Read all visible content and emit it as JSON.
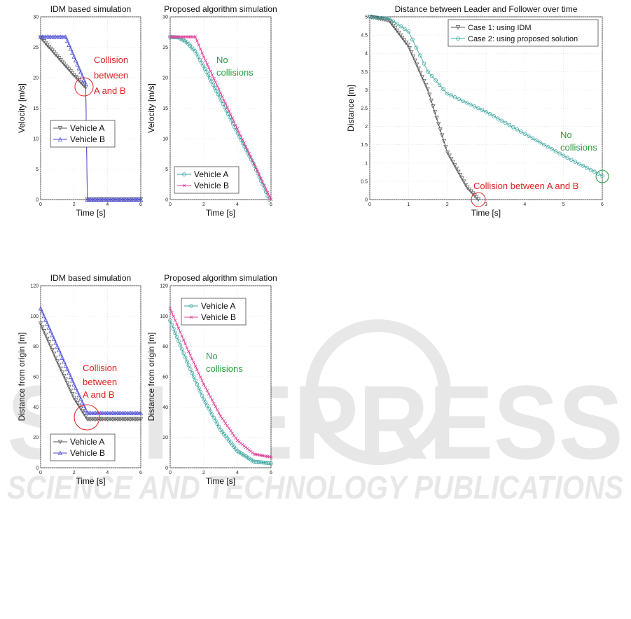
{
  "watermark": {
    "text": "SCITEPRESS",
    "subtext": "SCIENCE AND TECHNOLOGY PUBLICATIONS"
  },
  "colors": {
    "vehicle_a": "#555555",
    "vehicle_b_idm": "#4a4ad6",
    "vehicle_a_prop": "#3aa6a0",
    "vehicle_b_prop": "#e0409a",
    "case2": "#3aa6a0",
    "annot_red": "#e02020",
    "annot_green": "#2aa040"
  },
  "chart_data": [
    {
      "id": "vel_idm",
      "type": "line",
      "title": "IDM based simulation",
      "xlabel": "Time [s]",
      "ylabel": "Velocity [m/s]",
      "xlim": [
        0,
        6
      ],
      "ylim": [
        0,
        30
      ],
      "xticks": [
        0,
        2,
        4,
        6
      ],
      "yticks": [
        0,
        5,
        10,
        15,
        20,
        25,
        30
      ],
      "grid": true,
      "legend": "center-left",
      "series": [
        {
          "name": "Vehicle A",
          "marker": "tri-down",
          "color": "#555555",
          "points": [
            [
              0,
              26.6
            ],
            [
              1,
              23.5
            ],
            [
              2,
              20.4
            ],
            [
              2.7,
              18.4
            ],
            [
              2.8,
              0
            ],
            [
              6,
              0
            ]
          ]
        },
        {
          "name": "Vehicle B",
          "marker": "tri-up",
          "color": "#4a4ad6",
          "points": [
            [
              0,
              26.7
            ],
            [
              1.5,
              26.7
            ],
            [
              2.7,
              19.0
            ],
            [
              2.8,
              0
            ],
            [
              6,
              0
            ]
          ]
        }
      ],
      "annotations": [
        {
          "text": "Collision between A and B",
          "lines": [
            "Collision",
            "between",
            "A and B"
          ],
          "color": "red",
          "at": [
            2.7,
            18.6
          ]
        }
      ]
    },
    {
      "id": "vel_prop",
      "type": "line",
      "title": "Proposed algorithm simulation",
      "xlabel": "Time [s]",
      "ylabel": "Velocity [m/s]",
      "xlim": [
        0,
        6
      ],
      "ylim": [
        0,
        30
      ],
      "xticks": [
        0,
        2,
        4,
        6
      ],
      "yticks": [
        0,
        5,
        10,
        15,
        20,
        25,
        30
      ],
      "grid": true,
      "legend": "bottom-left",
      "series": [
        {
          "name": "Vehicle A",
          "marker": "circle",
          "color": "#3aa6a0",
          "points": [
            [
              0,
              26.7
            ],
            [
              0.5,
              26.6
            ],
            [
              1,
              25.8
            ],
            [
              1.5,
              24.3
            ],
            [
              2,
              21.8
            ],
            [
              3,
              16.5
            ],
            [
              4,
              11.0
            ],
            [
              5,
              5.6
            ],
            [
              5.9,
              0
            ]
          ]
        },
        {
          "name": "Vehicle B",
          "marker": "x",
          "color": "#e0409a",
          "points": [
            [
              0,
              26.7
            ],
            [
              1.5,
              26.7
            ],
            [
              2,
              23.4
            ],
            [
              3,
              17.5
            ],
            [
              4,
              11.6
            ],
            [
              5,
              5.8
            ],
            [
              6,
              0
            ]
          ]
        }
      ],
      "annotations": [
        {
          "text": "No collisions",
          "lines": [
            "No",
            "collisions"
          ],
          "color": "green",
          "at": [
            2.7,
            22
          ]
        }
      ]
    },
    {
      "id": "dist_lf",
      "type": "line",
      "title": "Distance between Leader and Follower over time",
      "xlabel": "Time [s]",
      "ylabel": "Distance [m]",
      "xlim": [
        0,
        6
      ],
      "ylim": [
        0,
        5
      ],
      "xticks": [
        0,
        1,
        2,
        3,
        4,
        5,
        6
      ],
      "yticks": [
        0,
        0.5,
        1,
        1.5,
        2,
        2.5,
        3,
        3.5,
        4,
        4.5,
        5
      ],
      "grid": true,
      "legend": "top-right",
      "series": [
        {
          "name": "Case 1: using IDM",
          "marker": "tri-down",
          "color": "#555555",
          "points": [
            [
              0,
              5
            ],
            [
              0.5,
              4.9
            ],
            [
              1,
              4.2
            ],
            [
              1.5,
              3.0
            ],
            [
              2,
              1.3
            ],
            [
              2.5,
              0.35
            ],
            [
              2.8,
              0
            ]
          ]
        },
        {
          "name": "Case 2: using proposed solution",
          "marker": "circle",
          "color": "#3aa6a0",
          "points": [
            [
              0,
              5
            ],
            [
              0.5,
              4.95
            ],
            [
              1,
              4.6
            ],
            [
              1.5,
              3.5
            ],
            [
              2,
              2.9
            ],
            [
              3,
              2.4
            ],
            [
              4,
              1.8
            ],
            [
              5,
              1.2
            ],
            [
              6,
              0.65
            ]
          ]
        }
      ],
      "annotations": [
        {
          "text": "Collision between A and B",
          "lines": [
            "Collision between A and B"
          ],
          "color": "red",
          "at": [
            2.8,
            0
          ]
        },
        {
          "text": "No collisions",
          "lines": [
            "No",
            "collisions"
          ],
          "color": "green",
          "at": [
            6.0,
            0.65
          ]
        }
      ]
    },
    {
      "id": "pos_idm",
      "type": "line",
      "title": "IDM based simulation",
      "xlabel": "Time [s]",
      "ylabel": "Distance from origin [m]",
      "xlim": [
        0,
        6
      ],
      "ylim": [
        0,
        120
      ],
      "xticks": [
        0,
        2,
        4,
        6
      ],
      "yticks": [
        0,
        20,
        40,
        60,
        80,
        100,
        120
      ],
      "grid": true,
      "legend": "bottom-left",
      "series": [
        {
          "name": "Vehicle A",
          "marker": "tri-down",
          "color": "#555555",
          "points": [
            [
              0,
              95
            ],
            [
              1,
              70
            ],
            [
              2,
              46
            ],
            [
              2.8,
              32
            ],
            [
              6,
              32
            ]
          ]
        },
        {
          "name": "Vehicle B",
          "marker": "tri-up",
          "color": "#4a4ad6",
          "points": [
            [
              0,
              105
            ],
            [
              1,
              80
            ],
            [
              2,
              55
            ],
            [
              2.8,
              36
            ],
            [
              6,
              36
            ]
          ]
        }
      ],
      "annotations": [
        {
          "text": "Collision between A and B",
          "lines": [
            "Collision",
            "between",
            "A and B"
          ],
          "color": "red",
          "at": [
            2.8,
            33
          ]
        }
      ]
    },
    {
      "id": "pos_prop",
      "type": "line",
      "title": "Proposed algorithm simulation",
      "xlabel": "Time [s]",
      "ylabel": "Distance from origin [m]",
      "xlim": [
        0,
        6
      ],
      "ylim": [
        0,
        120
      ],
      "xticks": [
        0,
        2,
        4,
        6
      ],
      "yticks": [
        0,
        20,
        40,
        60,
        80,
        100,
        120
      ],
      "grid": true,
      "legend": "top-left",
      "series": [
        {
          "name": "Vehicle A",
          "marker": "circle",
          "color": "#3aa6a0",
          "points": [
            [
              0,
              97
            ],
            [
              1,
              70
            ],
            [
              2,
              45
            ],
            [
              3,
              25
            ],
            [
              4,
              11
            ],
            [
              5,
              4
            ],
            [
              6,
              3
            ]
          ]
        },
        {
          "name": "Vehicle B",
          "marker": "x",
          "color": "#e0409a",
          "points": [
            [
              0,
              105
            ],
            [
              1,
              79
            ],
            [
              2,
              55
            ],
            [
              3,
              34
            ],
            [
              4,
              18
            ],
            [
              5,
              9
            ],
            [
              6,
              7
            ]
          ]
        }
      ],
      "annotations": [
        {
          "text": "No collisions",
          "lines": [
            "No",
            "collisions"
          ],
          "color": "green",
          "at": [
            2.6,
            72
          ]
        }
      ]
    }
  ]
}
